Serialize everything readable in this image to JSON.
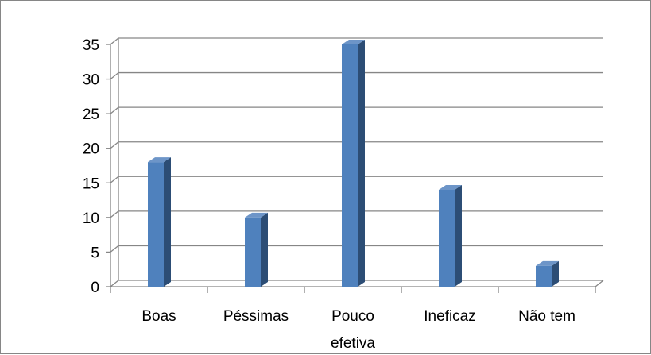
{
  "chart_data": {
    "type": "bar",
    "categories": [
      [
        "Boas"
      ],
      [
        "Péssimas"
      ],
      [
        "Pouco",
        "efetiva"
      ],
      [
        "Ineficaz"
      ],
      [
        "Não tem"
      ]
    ],
    "values": [
      18,
      10,
      35,
      14,
      3
    ],
    "ylim": [
      0,
      35
    ],
    "yticks": [
      "0",
      "5",
      "10",
      "15",
      "20",
      "25",
      "30",
      "35"
    ],
    "grid": true,
    "legend": "none",
    "style": "3d-column",
    "colors": {
      "bar_front": "#4f81bd",
      "bar_side": "#2c4d75",
      "bar_top": "#6d95c8",
      "gridline": "#868686",
      "axis": "#868686"
    }
  }
}
